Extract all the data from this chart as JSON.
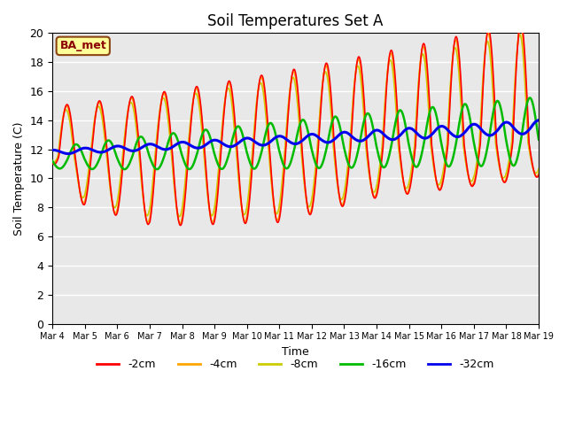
{
  "title": "Soil Temperatures Set A",
  "xlabel": "Time",
  "ylabel": "Soil Temperature (C)",
  "ylim": [
    0,
    20
  ],
  "yticks": [
    0,
    2,
    4,
    6,
    8,
    10,
    12,
    14,
    16,
    18,
    20
  ],
  "annotation": "BA_met",
  "annotation_color": "#8B0000",
  "annotation_bg": "#FFFF99",
  "annotation_border": "#8B4513",
  "colors": {
    "-2cm": "#FF0000",
    "-4cm": "#FFA500",
    "-8cm": "#CCCC00",
    "-16cm": "#00BB00",
    "-32cm": "#0000EE"
  },
  "line_widths": {
    "-2cm": 1.2,
    "-4cm": 1.2,
    "-8cm": 1.2,
    "-16cm": 1.8,
    "-32cm": 2.2
  },
  "x_tick_labels": [
    "Mar 4",
    "Mar 5",
    "Mar 6",
    "Mar 7",
    "Mar 8",
    "Mar 9",
    "Mar 10",
    "Mar 11",
    "Mar 12",
    "Mar 13",
    "Mar 14",
    "Mar 15",
    "Mar 16",
    "Mar 17",
    "Mar 18",
    "Mar 19"
  ],
  "background_color": "#E8E8E8",
  "grid_color": "#FFFFFF",
  "legend_items": [
    "-2cm",
    "-4cm",
    "-8cm",
    "-16cm",
    "-32cm"
  ],
  "n_points": 960,
  "n_days": 15
}
